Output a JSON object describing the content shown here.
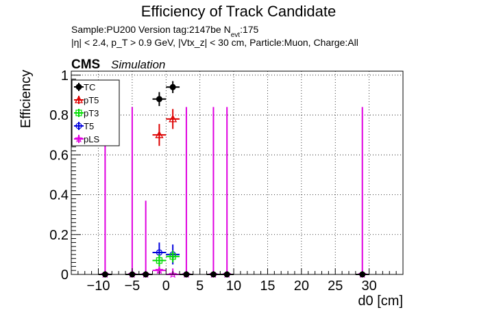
{
  "chart_data": {
    "type": "scatter",
    "title": "Efficiency of Track Candidate",
    "info_line1": {
      "pre": "Sample:PU200   Version tag:2147be  N",
      "sub": "evt",
      "post": ":175"
    },
    "info_line2": "|η| < 2.4, p_T > 0.9 GeV, |Vtx_z| < 30 cm, Particle:Muon, Charge:All",
    "cms_label": "CMS",
    "sim_label": "Simulation",
    "xlabel": "d0 [cm]",
    "ylabel": "Efficiency",
    "xlim": [
      -14,
      35
    ],
    "ylim": [
      0,
      1.02
    ],
    "xticks": [
      -10,
      -5,
      0,
      5,
      10,
      15,
      20,
      25,
      30
    ],
    "xtick_labels": [
      "−10",
      "−5",
      "0",
      "5",
      "10",
      "15",
      "20",
      "25",
      "30"
    ],
    "yticks": [
      0,
      0.2,
      0.4,
      0.6,
      0.8,
      1
    ],
    "ytick_labels": [
      "0",
      "0.2",
      "0.4",
      "0.6",
      "0.8",
      "1"
    ],
    "grid": true,
    "legend_position": "top-left",
    "series": [
      {
        "name": "TC",
        "color": "#000000",
        "marker": "filled-circle",
        "points": [
          {
            "x": -9,
            "y": 0,
            "err": 0,
            "xerr": 1
          },
          {
            "x": -5,
            "y": 0,
            "err": 0,
            "xerr": 1
          },
          {
            "x": -3,
            "y": 0,
            "err": 0,
            "xerr": 1
          },
          {
            "x": -1,
            "y": 0.88,
            "err": 0.035,
            "xerr": 1
          },
          {
            "x": 1,
            "y": 0.94,
            "err": 0.03,
            "xerr": 1
          },
          {
            "x": 3,
            "y": 0,
            "err": 0,
            "xerr": 1
          },
          {
            "x": 7,
            "y": 0,
            "err": 0,
            "xerr": 1
          },
          {
            "x": 9,
            "y": 0,
            "err": 0,
            "xerr": 1
          },
          {
            "x": 29,
            "y": 0,
            "err": 0,
            "xerr": 1
          }
        ]
      },
      {
        "name": "pT5",
        "color": "#dd0000",
        "marker": "open-triangle",
        "points": [
          {
            "x": -1,
            "y": 0.7,
            "err": 0.055,
            "xerr": 1
          },
          {
            "x": 1,
            "y": 0.78,
            "err": 0.05,
            "xerr": 1
          }
        ]
      },
      {
        "name": "pT3",
        "color": "#00dd00",
        "marker": "open-square",
        "points": [
          {
            "x": -1,
            "y": 0.07,
            "err": 0.03,
            "xerr": 1
          },
          {
            "x": 1,
            "y": 0.09,
            "err": 0.03,
            "xerr": 1
          }
        ]
      },
      {
        "name": "T5",
        "color": "#0000dd",
        "marker": "open-circle",
        "points": [
          {
            "x": -1,
            "y": 0.11,
            "err": 0.05,
            "xerr": 1
          },
          {
            "x": 1,
            "y": 0.1,
            "err": 0.05,
            "xerr": 1
          }
        ]
      },
      {
        "name": "pLS",
        "color": "#e000e0",
        "marker": "open-star",
        "points": [
          {
            "x": -9,
            "y": 0,
            "err_up": 0.84,
            "err_down": 0,
            "xerr": 1
          },
          {
            "x": -5,
            "y": 0,
            "err_up": 0.84,
            "err_down": 0,
            "xerr": 1
          },
          {
            "x": -3,
            "y": 0,
            "err_up": 0.37,
            "err_down": 0,
            "xerr": 1
          },
          {
            "x": -1,
            "y": 0.02,
            "err_up": 0.03,
            "err_down": 0.02,
            "xerr": 1
          },
          {
            "x": 1,
            "y": 0,
            "err_up": 0.03,
            "err_down": 0,
            "xerr": 1
          },
          {
            "x": 3,
            "y": 0,
            "err_up": 0.84,
            "err_down": 0,
            "xerr": 1
          },
          {
            "x": 7,
            "y": 0,
            "err_up": 0.84,
            "err_down": 0,
            "xerr": 1
          },
          {
            "x": 9,
            "y": 0,
            "err_up": 0.84,
            "err_down": 0,
            "xerr": 1
          },
          {
            "x": 29,
            "y": 0,
            "err_up": 0.84,
            "err_down": 0,
            "xerr": 1
          }
        ]
      }
    ]
  }
}
